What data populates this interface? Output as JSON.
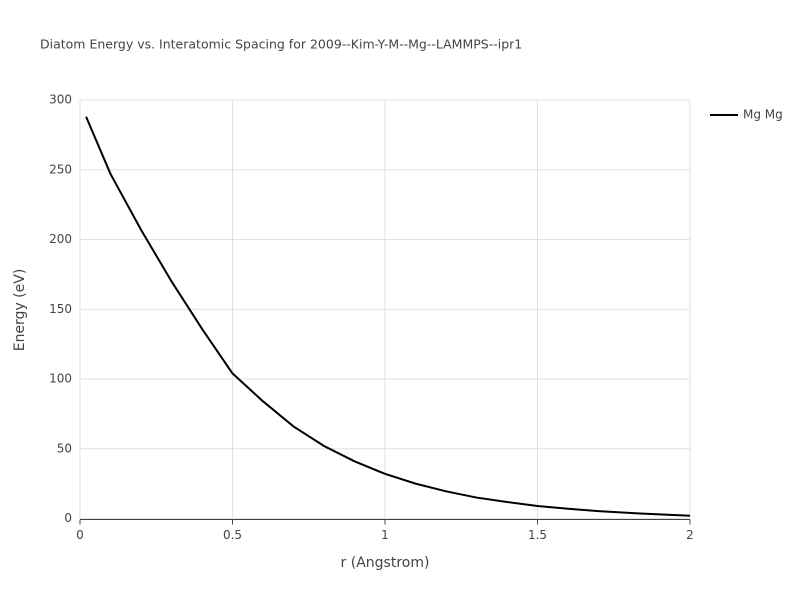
{
  "chart_data": {
    "type": "line",
    "title": "Diatom Energy vs. Interatomic Spacing for 2009--Kim-Y-M--Mg--LAMMPS--ipr1",
    "x_label": "r (Angstrom)",
    "y_label": "Energy (eV)",
    "x": [
      0.02,
      0.1,
      0.2,
      0.3,
      0.4,
      0.5,
      0.6,
      0.7,
      0.8,
      0.9,
      1.0,
      1.1,
      1.2,
      1.3,
      1.4,
      1.5,
      1.6,
      1.7,
      1.8,
      1.9,
      2.0
    ],
    "series": [
      {
        "name": "Mg Mg",
        "color": "#000000",
        "values": [
          288,
          247,
          207,
          170,
          136,
          104,
          84,
          66,
          52,
          41,
          32,
          25,
          19.5,
          15,
          11.8,
          9,
          7,
          5.3,
          4,
          3,
          2
        ]
      }
    ],
    "xlim": [
      0,
      2
    ],
    "xticks": [
      0,
      0.5,
      1,
      1.5,
      2
    ],
    "ylim": [
      0,
      300
    ],
    "yticks": [
      0,
      50,
      100,
      150,
      200,
      250,
      300
    ],
    "grid": true
  }
}
